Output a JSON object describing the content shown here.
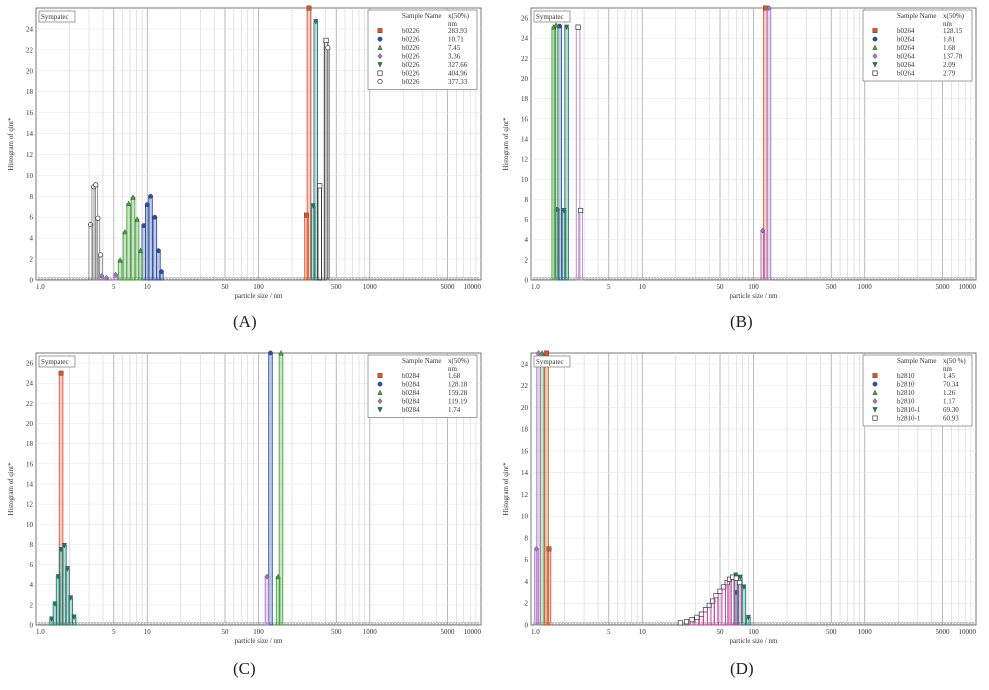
{
  "figure": {
    "captions": [
      "(A)",
      "(B)",
      "(C)",
      "(D)"
    ]
  },
  "chart_data": [
    {
      "type": "bar",
      "panel": "A",
      "title": "Sympatec",
      "xlabel": "particle size / nm",
      "ylabel": "Histogram of qint*",
      "xscale": "log",
      "xlim": [
        1.0,
        10000
      ],
      "ylim": [
        0,
        26
      ],
      "x_ticks": [
        "1.0",
        "5",
        "10",
        "50",
        "100",
        "500",
        "1000",
        "5000",
        "10000"
      ],
      "y_ticks": [
        "0",
        "2",
        "4",
        "6",
        "8",
        "10",
        "12",
        "14",
        "16",
        "18",
        "20",
        "22",
        "24"
      ],
      "legend_header": "Sample Name",
      "legend_header_value": "x(50%)",
      "legend_unit": "nm",
      "series": [
        {
          "name": "b0226",
          "x50": "283.93",
          "color": "#d9542f",
          "marker": "square-filled",
          "points": [
            [
              270,
              6.2
            ],
            [
              284,
              26
            ]
          ]
        },
        {
          "name": "b0226",
          "x50": "10.71",
          "color": "#2d4fa6",
          "marker": "circle-filled",
          "points": [
            [
              9.3,
              5.2
            ],
            [
              10.0,
              7.2
            ],
            [
              10.7,
              8.0
            ],
            [
              11.7,
              6.0
            ],
            [
              12.6,
              2.8
            ],
            [
              13.4,
              0.8
            ]
          ]
        },
        {
          "name": "b0226",
          "x50": "7.45",
          "color": "#48a23f",
          "marker": "triangle-up",
          "points": [
            [
              5.7,
              1.9
            ],
            [
              6.3,
              4.6
            ],
            [
              6.8,
              7.3
            ],
            [
              7.45,
              7.9
            ],
            [
              8.1,
              5.8
            ],
            [
              8.7,
              2.8
            ]
          ]
        },
        {
          "name": "b0226",
          "x50": "3.36",
          "color": "#a874c7",
          "marker": "diamond",
          "points": [
            [
              3.9,
              0.4
            ],
            [
              4.3,
              0.2
            ],
            [
              5.2,
              0.5
            ]
          ]
        },
        {
          "name": "b0226",
          "x50": "327.66",
          "color": "#1f7a6e",
          "marker": "triangle-down",
          "points": [
            [
              310,
              7.1
            ],
            [
              327,
              24.7
            ]
          ]
        },
        {
          "name": "b0226",
          "x50": "404.96",
          "color": "#222222",
          "marker": "square-open",
          "points": [
            [
              355,
              9.0
            ],
            [
              405,
              22.9
            ]
          ]
        },
        {
          "name": "b0226",
          "x50": "377.33",
          "color": "#888888",
          "marker": "circle-open",
          "points": [
            [
              3.1,
              5.3
            ],
            [
              3.3,
              8.9
            ],
            [
              3.45,
              9.1
            ],
            [
              3.6,
              5.9
            ],
            [
              3.8,
              2.4
            ],
            [
              420,
              22.2
            ]
          ]
        }
      ]
    },
    {
      "type": "bar",
      "panel": "B",
      "title": "Sympatec",
      "xlabel": "particle size / nm",
      "ylabel": "Histogram of qint*",
      "xscale": "log",
      "xlim": [
        1.0,
        10000
      ],
      "ylim": [
        0,
        27
      ],
      "x_ticks": [
        "1.0",
        "5",
        "10",
        "50",
        "100",
        "500",
        "1000",
        "5000",
        "10000"
      ],
      "y_ticks": [
        "0",
        "2",
        "4",
        "6",
        "8",
        "10",
        "12",
        "14",
        "16",
        "18",
        "20",
        "22",
        "24",
        "26"
      ],
      "legend_header": "Sample Name",
      "legend_header_value": "x(50%)",
      "legend_unit": "nm",
      "series": [
        {
          "name": "b0264",
          "x50": "128.15",
          "color": "#d9542f",
          "marker": "square-filled",
          "points": [
            [
              128,
              27
            ]
          ]
        },
        {
          "name": "b0264",
          "x50": "1.81",
          "color": "#2d4fa6",
          "marker": "circle-filled",
          "points": [
            [
              1.72,
              7.0
            ],
            [
              1.81,
              25.2
            ]
          ]
        },
        {
          "name": "b0264",
          "x50": "1.68",
          "color": "#48a23f",
          "marker": "triangle-up",
          "points": [
            [
              1.6,
              25.1
            ],
            [
              1.68,
              25.3
            ]
          ]
        },
        {
          "name": "b0264",
          "x50": "137.78",
          "color": "#a874c7",
          "marker": "diamond",
          "points": [
            [
              121,
              4.9
            ],
            [
              137.78,
              27
            ]
          ]
        },
        {
          "name": "b0264",
          "x50": "2.09",
          "color": "#1f7a6e",
          "marker": "triangle-down",
          "points": [
            [
              1.98,
              6.9
            ],
            [
              2.09,
              25.1
            ]
          ]
        },
        {
          "name": "b0264",
          "x50": "2.79",
          "color": "#b285c9",
          "marker": "square-open",
          "points": [
            [
              2.65,
              25.1
            ],
            [
              2.79,
              6.9
            ]
          ]
        }
      ]
    },
    {
      "type": "bar",
      "panel": "C",
      "title": "Sympatec",
      "xlabel": "particle size / nm",
      "ylabel": "Histogram of qint*",
      "xscale": "log",
      "xlim": [
        1.0,
        10000
      ],
      "ylim": [
        0,
        27
      ],
      "x_ticks": [
        "1.0",
        "5",
        "10",
        "50",
        "100",
        "500",
        "1000",
        "5000",
        "10000"
      ],
      "y_ticks": [
        "0",
        "2",
        "4",
        "6",
        "8",
        "10",
        "12",
        "14",
        "16",
        "18",
        "20",
        "22",
        "24",
        "26"
      ],
      "legend_header": "Sample Name",
      "legend_header_value": "x(50%)",
      "legend_unit": "nm",
      "series": [
        {
          "name": "b0284",
          "x50": "1.68",
          "color": "#d9542f",
          "marker": "square-filled",
          "points": [
            [
              1.68,
              25
            ]
          ]
        },
        {
          "name": "b0284",
          "x50": "128.18",
          "color": "#2d4fa6",
          "marker": "circle-filled",
          "points": [
            [
              128.18,
              27
            ]
          ]
        },
        {
          "name": "b0284",
          "x50": "159.28",
          "color": "#48a23f",
          "marker": "triangle-up",
          "points": [
            [
              150,
              4.8
            ],
            [
              159.28,
              27
            ]
          ]
        },
        {
          "name": "b0284",
          "x50": "119.19",
          "color": "#a874c7",
          "marker": "diamond",
          "points": [
            [
              119.19,
              4.8
            ]
          ]
        },
        {
          "name": "b0284",
          "x50": "1.74",
          "color": "#1f7a6e",
          "marker": "triangle-down",
          "points": [
            [
              1.38,
              0.6
            ],
            [
              1.48,
              2.1
            ],
            [
              1.58,
              4.8
            ],
            [
              1.68,
              7.5
            ],
            [
              1.8,
              7.9
            ],
            [
              1.92,
              5.6
            ],
            [
              2.05,
              2.7
            ],
            [
              2.2,
              0.8
            ]
          ]
        }
      ]
    },
    {
      "type": "bar",
      "panel": "D",
      "title": "Sympatec",
      "xlabel": "particle size / nm",
      "ylabel": "Histogram of qint*",
      "xscale": "log",
      "xlim": [
        1.0,
        10000
      ],
      "ylim": [
        0,
        25
      ],
      "x_ticks": [
        "1.0",
        "5",
        "10",
        "50",
        "100",
        "500",
        "1000",
        "5000",
        "10000"
      ],
      "y_ticks": [
        "0",
        "2",
        "4",
        "6",
        "8",
        "10",
        "12",
        "14",
        "16",
        "18",
        "20",
        "22",
        "24"
      ],
      "legend_header": "Sample Name",
      "legend_header_value": "x(50 %)",
      "legend_unit": "nm",
      "series": [
        {
          "name": "b2810",
          "x50": "1.45",
          "color": "#d9542f",
          "marker": "square-filled",
          "points": [
            [
              1.38,
              25
            ],
            [
              1.45,
              7.0
            ]
          ]
        },
        {
          "name": "b2810",
          "x50": "70.34",
          "color": "#2d4fa6",
          "marker": "circle-filled",
          "points": [
            [
              70.34,
              3.0
            ]
          ]
        },
        {
          "name": "b2810",
          "x50": "1.26",
          "color": "#48a23f",
          "marker": "triangle-up",
          "points": [
            [
              1.26,
              25
            ]
          ]
        },
        {
          "name": "b2810",
          "x50": "1.17",
          "color": "#a874c7",
          "marker": "diamond",
          "points": [
            [
              1.12,
              7.0
            ],
            [
              1.17,
              25
            ]
          ]
        },
        {
          "name": "b2810-1",
          "x50": "69.30",
          "color": "#1f7a6e",
          "marker": "triangle-down",
          "points": [
            [
              69.3,
              4.6
            ],
            [
              76,
              4.4
            ],
            [
              82,
              3.5
            ],
            [
              90,
              0.7
            ]
          ]
        },
        {
          "name": "b2810-1",
          "x50": "60.93",
          "color": "#c24aa5",
          "marker": "square-open",
          "points": [
            [
              22,
              0.2
            ],
            [
              25,
              0.3
            ],
            [
              28,
              0.5
            ],
            [
              31,
              0.7
            ],
            [
              34,
              1.0
            ],
            [
              37,
              1.4
            ],
            [
              40,
              1.8
            ],
            [
              43,
              2.2
            ],
            [
              46,
              2.7
            ],
            [
              50,
              3.1
            ],
            [
              54,
              3.5
            ],
            [
              58,
              3.9
            ],
            [
              60.93,
              4.2
            ],
            [
              65,
              4.4
            ],
            [
              70,
              4.3
            ],
            [
              75,
              3.9
            ]
          ]
        }
      ]
    }
  ]
}
